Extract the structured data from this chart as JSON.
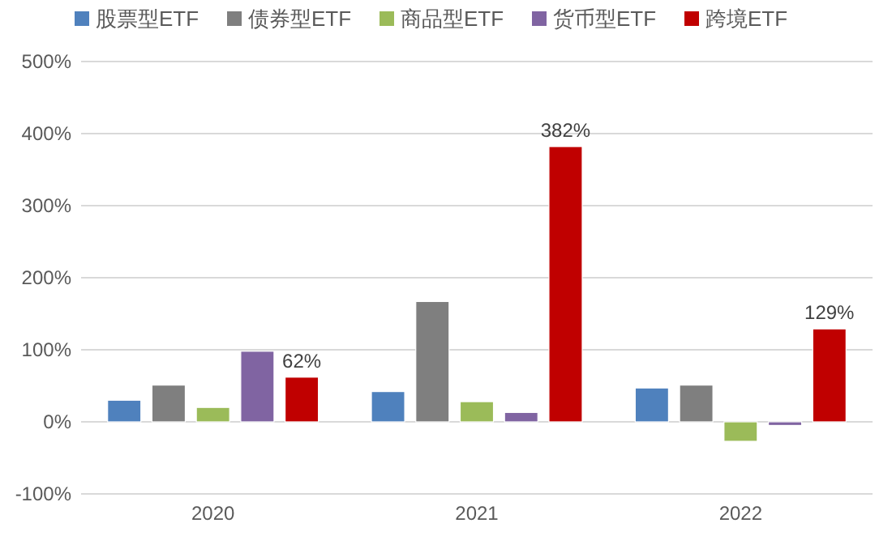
{
  "chart_data": {
    "type": "bar",
    "categories": [
      "2020",
      "2021",
      "2022"
    ],
    "series": [
      {
        "name": "股票型ETF",
        "color": "#4f81bd",
        "values": [
          30,
          42,
          47
        ]
      },
      {
        "name": "债券型ETF",
        "color": "#7f7f7f",
        "values": [
          51,
          167,
          51
        ]
      },
      {
        "name": "商品型ETF",
        "color": "#9bbb59",
        "values": [
          20,
          28,
          -27
        ]
      },
      {
        "name": "货币型ETF",
        "color": "#8064a2",
        "values": [
          98,
          13,
          -5
        ]
      },
      {
        "name": "跨境ETF",
        "color": "#c00000",
        "values": [
          62,
          382,
          129
        ],
        "value_labels": [
          "62%",
          "382%",
          "129%"
        ]
      }
    ],
    "ylim": [
      -100,
      500
    ],
    "yticks": [
      {
        "value": -100,
        "label": "-100%"
      },
      {
        "value": 0,
        "label": "0%"
      },
      {
        "value": 100,
        "label": "100%"
      },
      {
        "value": 200,
        "label": "200%"
      },
      {
        "value": 300,
        "label": "300%"
      },
      {
        "value": 400,
        "label": "400%"
      },
      {
        "value": 500,
        "label": "500%"
      }
    ],
    "grid": "y",
    "legend": "top"
  }
}
